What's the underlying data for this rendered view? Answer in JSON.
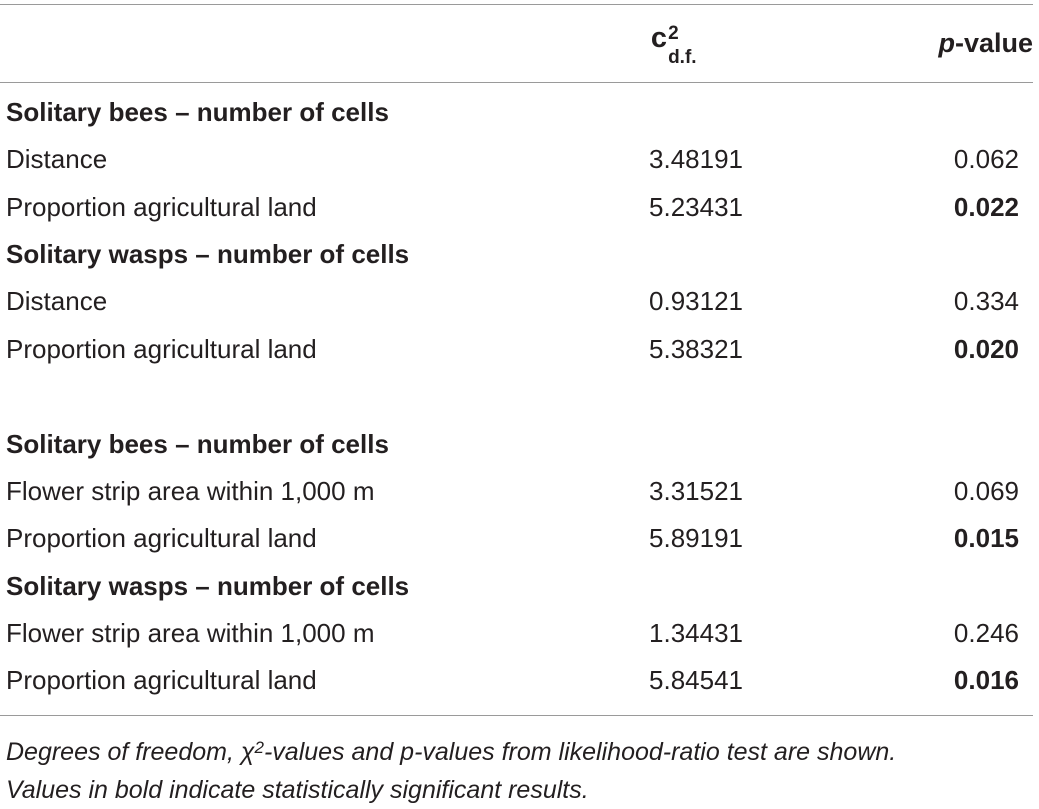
{
  "header": {
    "col_chi_base": "c",
    "col_chi_sup": "2",
    "col_chi_sub": "d.f.",
    "col_p_italic": "p",
    "col_p_rest": "-value"
  },
  "rows": [
    {
      "type": "section",
      "label": "Solitary bees – number of cells"
    },
    {
      "type": "data",
      "label": "Distance",
      "chi": "3.48191",
      "p": "0.062",
      "sig": false
    },
    {
      "type": "data",
      "label": "Proportion agricultural land",
      "chi": "5.23431",
      "p": "0.022",
      "sig": true
    },
    {
      "type": "section",
      "label": "Solitary wasps – number of cells"
    },
    {
      "type": "data",
      "label": "Distance",
      "chi": "0.93121",
      "p": "0.334",
      "sig": false
    },
    {
      "type": "data",
      "label": "Proportion agricultural land",
      "chi": "5.38321",
      "p": "0.020",
      "sig": true
    },
    {
      "type": "section",
      "label": "Solitary bees – number of cells"
    },
    {
      "type": "data",
      "label": "Flower strip area within 1,000 m",
      "chi": "3.31521",
      "p": "0.069",
      "sig": false
    },
    {
      "type": "data",
      "label": "Proportion agricultural land",
      "chi": "5.89191",
      "p": "0.015",
      "sig": true
    },
    {
      "type": "section",
      "label": "Solitary wasps – number of cells"
    },
    {
      "type": "data",
      "label": "Flower strip area within 1,000 m",
      "chi": "1.34431",
      "p": "0.246",
      "sig": false
    },
    {
      "type": "data",
      "label": "Proportion agricultural land",
      "chi": "5.84541",
      "p": "0.016",
      "sig": true
    }
  ],
  "footnote": {
    "part1": "Degrees of freedom, χ",
    "sup": "2",
    "part2": "-values and p-values from likelihood-ratio test are shown.",
    "line2": "Values in bold indicate statistically significant results."
  }
}
